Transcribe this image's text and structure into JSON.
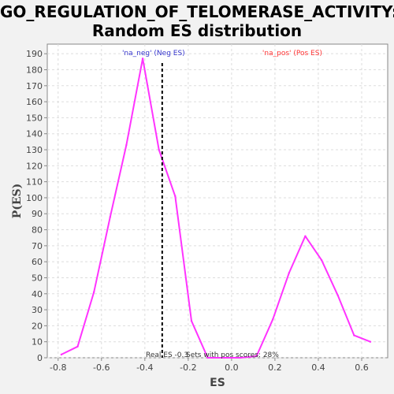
{
  "chart_data": {
    "type": "line",
    "title": "GO_REGULATION_OF_TELOMERASE_ACTIVITY:",
    "subtitle": "Random ES distribution",
    "xlabel": "ES",
    "ylabel": "P(ES)",
    "xlim": [
      -0.85,
      0.72
    ],
    "ylim": [
      0,
      196
    ],
    "x_ticks": [
      "-0.8",
      "-0.6",
      "-0.4",
      "-0.2",
      "0.0",
      "0.2",
      "0.4",
      "0.6"
    ],
    "y_ticks": [
      "0",
      "10",
      "20",
      "30",
      "40",
      "50",
      "60",
      "70",
      "80",
      "90",
      "100",
      "110",
      "120",
      "130",
      "140",
      "150",
      "160",
      "170",
      "180",
      "190"
    ],
    "grid": true,
    "series": [
      {
        "color": "#ff33ff",
        "x": [
          -0.785,
          -0.71,
          -0.635,
          -0.56,
          -0.485,
          -0.41,
          -0.335,
          -0.26,
          -0.185,
          -0.11,
          -0.035,
          0.04,
          0.115,
          0.19,
          0.265,
          0.34,
          0.415,
          0.49,
          0.565,
          0.64
        ],
        "y": [
          2,
          7,
          41,
          88,
          133,
          187,
          130,
          101,
          23,
          0,
          0,
          0,
          1,
          24,
          53,
          76,
          61,
          39,
          14,
          10
        ]
      }
    ],
    "real_es": {
      "value": -0.32,
      "label": "Real ES -0.3",
      "line_color": "#000000"
    },
    "annotations": {
      "neg_label": "'na_neg' (Neg ES)",
      "neg_color": "#3333cc",
      "pos_label": "'na_pos' (Pos ES)",
      "pos_color": "#ff3333",
      "pos_scores_label": "Sets with pos scores: 28%"
    }
  }
}
